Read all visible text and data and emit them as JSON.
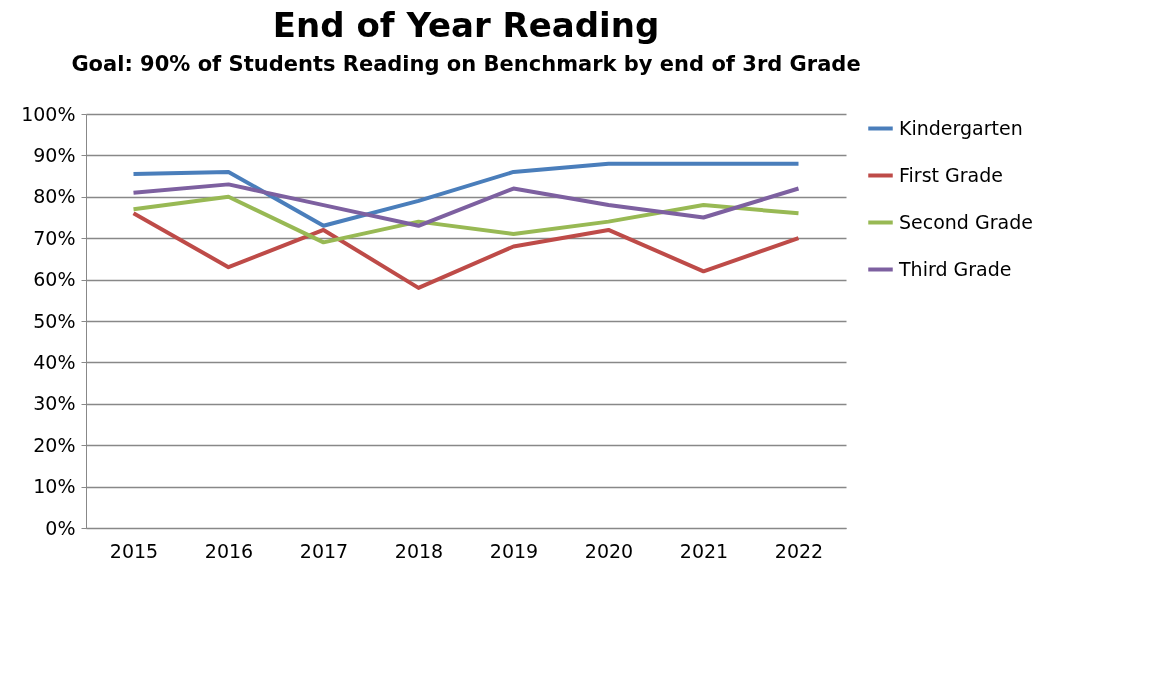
{
  "chart_data": {
    "type": "line",
    "title": "End of Year Reading",
    "subtitle": "Goal: 90% of Students Reading on Benchmark by end of 3rd Grade",
    "categories": [
      "2015",
      "2016",
      "2017",
      "2018",
      "2019",
      "2020",
      "2021",
      "2022"
    ],
    "series": [
      {
        "name": "Kindergarten",
        "color": "#4a7ebb",
        "values": [
          85.5,
          86,
          73,
          79,
          86,
          88,
          88,
          88
        ]
      },
      {
        "name": "First Grade",
        "color": "#be4b48",
        "values": [
          76,
          63,
          72,
          58,
          68,
          72,
          62,
          70
        ]
      },
      {
        "name": "Second Grade",
        "color": "#98b954",
        "values": [
          77,
          80,
          69,
          74,
          71,
          74,
          78,
          76
        ]
      },
      {
        "name": "Third Grade",
        "color": "#7d60a0",
        "values": [
          81,
          83,
          78,
          73,
          82,
          78,
          75,
          82
        ]
      }
    ],
    "ylim": [
      0,
      100
    ],
    "yticks": [
      {
        "value": 0,
        "label": "0%"
      },
      {
        "value": 10,
        "label": "10%"
      },
      {
        "value": 20,
        "label": "20%"
      },
      {
        "value": 30,
        "label": "30%"
      },
      {
        "value": 40,
        "label": "40%"
      },
      {
        "value": 50,
        "label": "50%"
      },
      {
        "value": 60,
        "label": "60%"
      },
      {
        "value": 70,
        "label": "70%"
      },
      {
        "value": 80,
        "label": "80%"
      },
      {
        "value": 90,
        "label": "90%"
      },
      {
        "value": 100,
        "label": "100%"
      }
    ],
    "grid": "y",
    "legend": "right",
    "marker": "none",
    "line_style": "solid"
  }
}
